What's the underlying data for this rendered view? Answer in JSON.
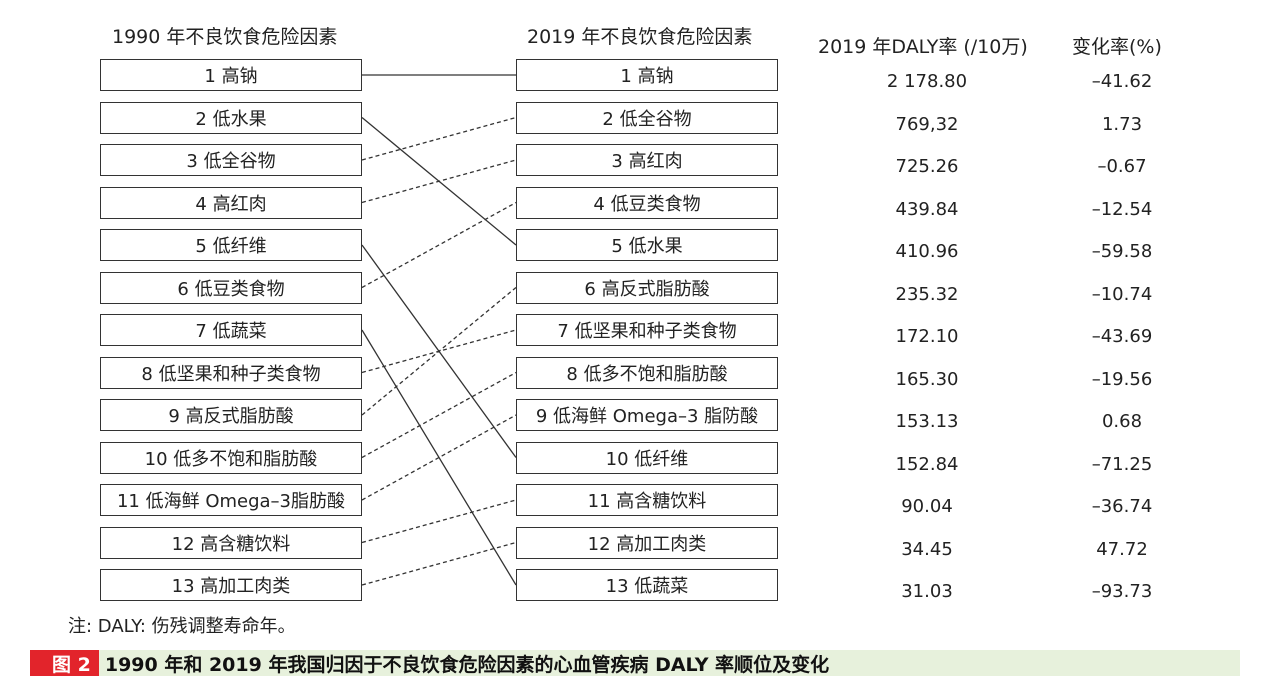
{
  "headers": {
    "left": "1990 年不良饮食危险因素",
    "right": "2019 年不良饮食危险因素",
    "daly": "2019 年DALY率 (/10万)",
    "change": "变化率(%)"
  },
  "left_items": [
    "1 高钠",
    "2 低水果",
    "3 低全谷物",
    "4 高红肉",
    "5 低纤维",
    "6 低豆类食物",
    "7 低蔬菜",
    "8 低坚果和种子类食物",
    "9 高反式脂肪酸",
    "10 低多不饱和脂肪酸",
    "11 低海鲜 Omega–3脂肪酸",
    "12 高含糖饮料",
    "13 高加工肉类"
  ],
  "right_items": [
    "1 高钠",
    "2 低全谷物",
    "3 高红肉",
    "4 低豆类食物",
    "5 低水果",
    "6 高反式脂肪酸",
    "7 低坚果和种子类食物",
    "8 低多不饱和脂肪酸",
    "9 低海鲜 Omega–3 脂防酸",
    "10 低纤维",
    "11 高含糖饮料",
    "12 高加工肉类",
    "13 低蔬菜"
  ],
  "daly_rates": [
    "2 178.80",
    "769,32",
    "725.26",
    "439.84",
    "410.96",
    "235.32",
    "172.10",
    "165.30",
    "153.13",
    "152.84",
    "90.04",
    "34.45",
    "31.03"
  ],
  "change_rates": [
    "–41.62",
    "1.73",
    "–0.67",
    "–12.54",
    "–59.58",
    "–10.74",
    "–43.69",
    "–19.56",
    "0.68",
    "–71.25",
    "–36.74",
    "47.72",
    "–93.73"
  ],
  "links": [
    {
      "from": 1,
      "to": 1,
      "style": "solid"
    },
    {
      "from": 2,
      "to": 5,
      "style": "solid"
    },
    {
      "from": 3,
      "to": 2,
      "style": "dashed"
    },
    {
      "from": 4,
      "to": 3,
      "style": "dashed"
    },
    {
      "from": 5,
      "to": 10,
      "style": "solid"
    },
    {
      "from": 6,
      "to": 4,
      "style": "dashed"
    },
    {
      "from": 7,
      "to": 13,
      "style": "solid"
    },
    {
      "from": 8,
      "to": 7,
      "style": "dashed"
    },
    {
      "from": 9,
      "to": 6,
      "style": "dashed"
    },
    {
      "from": 10,
      "to": 8,
      "style": "dashed"
    },
    {
      "from": 11,
      "to": 9,
      "style": "dashed"
    },
    {
      "from": 12,
      "to": 11,
      "style": "dashed"
    },
    {
      "from": 13,
      "to": 12,
      "style": "dashed"
    }
  ],
  "note": "注: DALY: 伤残调整寿命年。",
  "caption": {
    "tag": "图 2",
    "title": "1990 年和 2019 年我国归因于不良饮食危险因素的心血管疾病 DALY 率顺位及变化"
  },
  "colors": {
    "accent": "#e2242b",
    "caption_bg": "#e7f1dc",
    "line": "#333333"
  }
}
